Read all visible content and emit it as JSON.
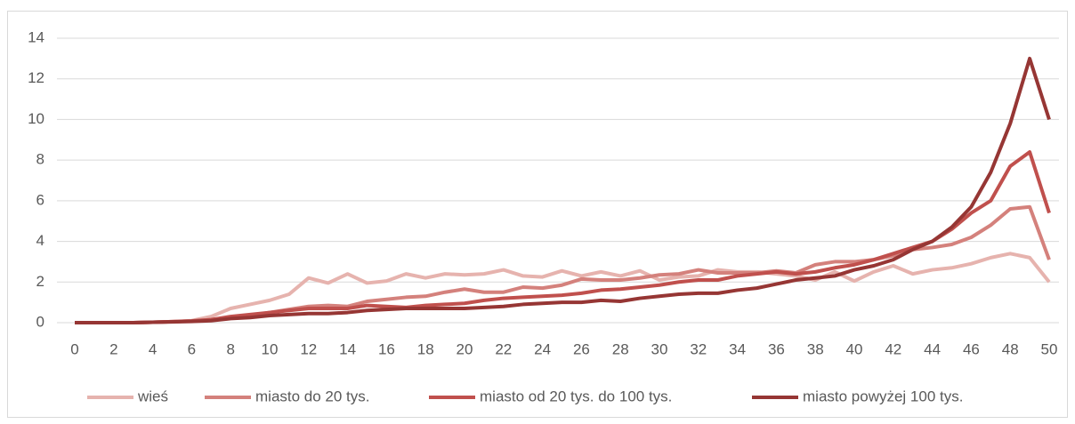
{
  "chart_data": {
    "type": "line",
    "x": [
      0,
      1,
      2,
      3,
      4,
      5,
      6,
      7,
      8,
      9,
      10,
      11,
      12,
      13,
      14,
      15,
      16,
      17,
      18,
      19,
      20,
      21,
      22,
      23,
      24,
      25,
      26,
      27,
      28,
      29,
      30,
      31,
      32,
      33,
      34,
      35,
      36,
      37,
      38,
      39,
      40,
      41,
      42,
      43,
      44,
      45,
      46,
      47,
      48,
      49,
      50
    ],
    "xlim": [
      0,
      50
    ],
    "xticks": [
      0,
      2,
      4,
      6,
      8,
      10,
      12,
      14,
      16,
      18,
      20,
      22,
      24,
      26,
      28,
      30,
      32,
      34,
      36,
      38,
      40,
      42,
      44,
      46,
      48,
      50
    ],
    "ylim": [
      0,
      14
    ],
    "yticks": [
      0,
      2,
      4,
      6,
      8,
      10,
      12,
      14
    ],
    "grid": true,
    "legend": "bottom",
    "series": [
      {
        "name": "wieś",
        "color": "#e6b3ae",
        "values": [
          0,
          0,
          0,
          0,
          0.02,
          0.05,
          0.1,
          0.3,
          0.7,
          0.9,
          1.1,
          1.4,
          2.2,
          1.95,
          2.4,
          1.95,
          2.05,
          2.4,
          2.2,
          2.4,
          2.35,
          2.4,
          2.6,
          2.3,
          2.25,
          2.55,
          2.3,
          2.5,
          2.3,
          2.55,
          2.1,
          2.25,
          2.3,
          2.6,
          2.5,
          2.5,
          2.4,
          2.3,
          2.1,
          2.5,
          2.05,
          2.5,
          2.8,
          2.4,
          2.6,
          2.7,
          2.9,
          3.2,
          3.4,
          3.2,
          2.0
        ]
      },
      {
        "name": "miasto do 20 tys.",
        "color": "#d4817c",
        "values": [
          0,
          0,
          0,
          0,
          0.02,
          0.05,
          0.08,
          0.15,
          0.25,
          0.35,
          0.5,
          0.65,
          0.8,
          0.85,
          0.8,
          1.05,
          1.15,
          1.25,
          1.3,
          1.5,
          1.65,
          1.5,
          1.5,
          1.75,
          1.7,
          1.85,
          2.15,
          2.1,
          2.1,
          2.2,
          2.35,
          2.4,
          2.6,
          2.45,
          2.45,
          2.45,
          2.55,
          2.45,
          2.85,
          3.0,
          3.0,
          3.1,
          3.3,
          3.6,
          3.7,
          3.85,
          4.2,
          4.8,
          5.6,
          5.7,
          3.1
        ]
      },
      {
        "name": "miasto od 20 tys. do 100 tys.",
        "color": "#c0504d",
        "values": [
          0,
          0,
          0,
          0,
          0.02,
          0.05,
          0.08,
          0.15,
          0.3,
          0.4,
          0.5,
          0.6,
          0.7,
          0.7,
          0.7,
          0.85,
          0.8,
          0.75,
          0.85,
          0.9,
          0.95,
          1.1,
          1.2,
          1.25,
          1.3,
          1.35,
          1.45,
          1.6,
          1.65,
          1.75,
          1.85,
          2.0,
          2.1,
          2.1,
          2.3,
          2.4,
          2.5,
          2.4,
          2.5,
          2.7,
          2.85,
          3.1,
          3.4,
          3.7,
          4.0,
          4.6,
          5.4,
          6.0,
          7.7,
          8.4,
          5.4
        ]
      },
      {
        "name": "miasto powyżej 100 tys.",
        "color": "#963634",
        "values": [
          0,
          0,
          0,
          0,
          0.02,
          0.04,
          0.06,
          0.1,
          0.2,
          0.25,
          0.35,
          0.4,
          0.45,
          0.45,
          0.5,
          0.6,
          0.65,
          0.7,
          0.7,
          0.7,
          0.7,
          0.75,
          0.8,
          0.9,
          0.95,
          1.0,
          1.0,
          1.1,
          1.05,
          1.2,
          1.3,
          1.4,
          1.45,
          1.45,
          1.6,
          1.7,
          1.9,
          2.1,
          2.2,
          2.3,
          2.6,
          2.8,
          3.1,
          3.6,
          4.0,
          4.7,
          5.7,
          7.4,
          9.8,
          13.0,
          10.0
        ]
      }
    ]
  }
}
